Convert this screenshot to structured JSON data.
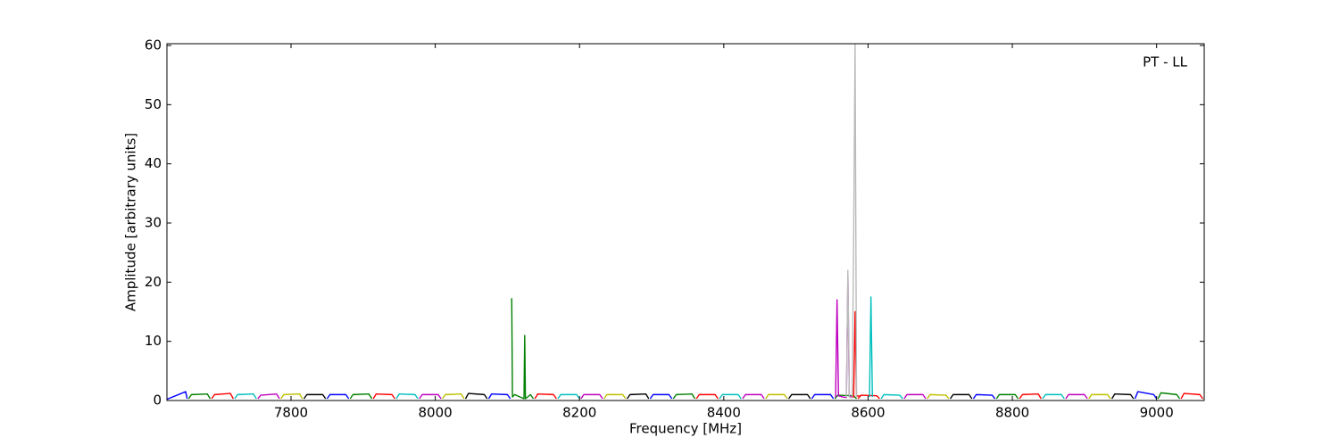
{
  "chart_data": {
    "type": "line",
    "annotation": "PT - LL",
    "xlabel": "Frequency [MHz]",
    "ylabel": "Amplitude [arbitrary units]",
    "xlim": [
      7628,
      9066
    ],
    "ylim": [
      0,
      60.3
    ],
    "xticks": [
      7800,
      8000,
      8200,
      8400,
      8600,
      8800,
      9000
    ],
    "yticks": [
      0,
      10,
      20,
      30,
      40,
      50,
      60
    ],
    "grid": false,
    "series": [
      {
        "color": "#0000ff",
        "x": [
          7626,
          7654,
          7656,
          7657,
          7850,
          7854,
          7876,
          7880,
          7881,
          8074,
          8078,
          8100,
          8104,
          8105,
          8298,
          8302,
          8324,
          8328,
          8329,
          8522,
          8526,
          8548,
          8552,
          8553,
          8746,
          8750,
          8772,
          8776,
          8777,
          8970,
          8974,
          8996,
          9000
        ],
        "values": [
          0.1,
          1.5,
          0.3,
          null,
          0.3,
          1.0,
          1.0,
          0.3,
          null,
          0.3,
          1.1,
          1.0,
          0.3,
          null,
          0.3,
          1.0,
          1.0,
          0.3,
          null,
          0.3,
          1.0,
          1.0,
          0.3,
          null,
          0.3,
          1.0,
          0.9,
          0.3,
          null,
          0.3,
          1.5,
          1.0,
          0.3
        ]
      },
      {
        "color": "#008000",
        "x": [
          7658,
          7662,
          7684,
          7688,
          7689,
          7882,
          7886,
          7908,
          7912,
          7913,
          8106,
          8107,
          8110,
          8123,
          8124,
          8125,
          8132,
          8136,
          8137,
          8330,
          8334,
          8356,
          8360,
          8361,
          8554,
          8558,
          8580,
          8584,
          8585,
          8778,
          8782,
          8804,
          8808,
          8809,
          9002,
          9006,
          9028,
          9032
        ],
        "values": [
          0.3,
          1.0,
          1.1,
          0.3,
          null,
          0.3,
          1.0,
          1.1,
          0.3,
          null,
          17.3,
          0.6,
          1.0,
          0.3,
          11.0,
          0.3,
          1.0,
          0.3,
          null,
          0.3,
          1.0,
          1.1,
          0.3,
          null,
          0.3,
          0.9,
          0.8,
          0.3,
          null,
          0.3,
          1.0,
          1.0,
          0.3,
          null,
          0.3,
          1.3,
          1.0,
          0.3
        ]
      },
      {
        "color": "#ff0000",
        "x": [
          7690,
          7694,
          7716,
          7720,
          7721,
          7914,
          7918,
          7940,
          7944,
          7945,
          8138,
          8142,
          8164,
          8168,
          8169,
          8362,
          8366,
          8388,
          8392,
          8393,
          8586,
          8590,
          8612,
          8616,
          8617,
          8810,
          8814,
          8836,
          8840,
          8841,
          9034,
          9038,
          9060,
          9064
        ],
        "values": [
          0.3,
          1.0,
          1.2,
          0.3,
          null,
          0.3,
          1.1,
          1.0,
          0.3,
          null,
          0.3,
          1.1,
          1.0,
          0.3,
          null,
          0.3,
          1.0,
          1.0,
          0.3,
          null,
          0.3,
          0.9,
          0.8,
          0.3,
          null,
          0.3,
          1.0,
          1.1,
          0.3,
          null,
          0.3,
          1.2,
          1.0,
          0.3
        ]
      },
      {
        "color": "#00bfbf",
        "x": [
          7722,
          7726,
          7748,
          7752,
          7753,
          7946,
          7950,
          7972,
          7976,
          7977,
          8170,
          8174,
          8196,
          8200,
          8201,
          8394,
          8398,
          8420,
          8424,
          8425,
          8618,
          8622,
          8644,
          8648,
          8649,
          8842,
          8846,
          8868,
          8872
        ],
        "values": [
          0.3,
          1.0,
          1.1,
          0.3,
          null,
          0.3,
          1.1,
          1.0,
          0.3,
          null,
          0.3,
          1.0,
          1.0,
          0.3,
          null,
          0.3,
          1.0,
          1.0,
          0.3,
          null,
          0.3,
          1.0,
          0.9,
          0.3,
          null,
          0.3,
          1.0,
          1.0,
          0.3
        ]
      },
      {
        "color": "#bf00bf",
        "x": [
          7754,
          7758,
          7780,
          7784,
          7785,
          7978,
          7982,
          8004,
          8008,
          8009,
          8202,
          8206,
          8228,
          8232,
          8233,
          8426,
          8430,
          8452,
          8456,
          8457,
          8650,
          8654,
          8676,
          8680,
          8681,
          8874,
          8878,
          8900,
          8904
        ],
        "values": [
          0.3,
          0.9,
          1.1,
          0.3,
          null,
          0.3,
          1.0,
          1.0,
          0.3,
          null,
          0.3,
          1.0,
          1.0,
          0.3,
          null,
          0.3,
          1.0,
          1.0,
          0.3,
          null,
          0.3,
          1.0,
          1.0,
          0.3,
          null,
          0.3,
          1.0,
          1.0,
          0.3
        ]
      },
      {
        "color": "#bfbf00",
        "x": [
          7786,
          7790,
          7812,
          7816,
          7817,
          8010,
          8014,
          8036,
          8040,
          8041,
          8234,
          8238,
          8260,
          8264,
          8265,
          8458,
          8462,
          8484,
          8488,
          8489,
          8682,
          8686,
          8708,
          8712,
          8713,
          8906,
          8910,
          8932,
          8936
        ],
        "values": [
          0.3,
          1.0,
          1.1,
          0.3,
          null,
          0.3,
          1.0,
          1.1,
          0.3,
          null,
          0.3,
          1.0,
          1.0,
          0.3,
          null,
          0.3,
          1.0,
          1.0,
          0.3,
          null,
          0.3,
          1.0,
          0.9,
          0.3,
          null,
          0.3,
          1.0,
          1.0,
          0.3
        ]
      },
      {
        "color": "#000000",
        "x": [
          7818,
          7822,
          7844,
          7848,
          7849,
          8042,
          8046,
          8068,
          8072,
          8073,
          8266,
          8270,
          8292,
          8296,
          8297,
          8490,
          8494,
          8516,
          8520,
          8521,
          8714,
          8718,
          8740,
          8744,
          8745,
          8938,
          8942,
          8964,
          8968
        ],
        "values": [
          0.3,
          1.0,
          1.0,
          0.3,
          null,
          0.3,
          1.2,
          1.0,
          0.3,
          null,
          0.3,
          1.0,
          1.1,
          0.3,
          null,
          0.3,
          1.0,
          1.0,
          0.3,
          null,
          0.3,
          1.0,
          1.0,
          0.3,
          null,
          0.3,
          1.1,
          1.0,
          0.3
        ]
      },
      {
        "color": "#bf00bf",
        "x": [
          8555,
          8557,
          8559,
          8565,
          8570,
          8572,
          8574,
          8580
        ],
        "values": [
          0.5,
          17,
          0.8,
          0.6,
          0.5,
          21,
          0.7,
          0.6
        ]
      },
      {
        "color": "#ff0000",
        "x": [
          8580,
          8582,
          8584,
          8590
        ],
        "values": [
          0.5,
          15,
          0.8,
          0.7
        ]
      },
      {
        "color": "#bbbbbb",
        "x": [
          8570,
          8572,
          8574,
          8578,
          8580,
          8582,
          8584
        ],
        "values": [
          0.5,
          22,
          0.6,
          0.4,
          27,
          60.3,
          0.5
        ]
      },
      {
        "color": "#00bfbf",
        "x": [
          8602,
          8604,
          8606
        ],
        "values": [
          0.6,
          17.5,
          0.6
        ]
      }
    ]
  }
}
